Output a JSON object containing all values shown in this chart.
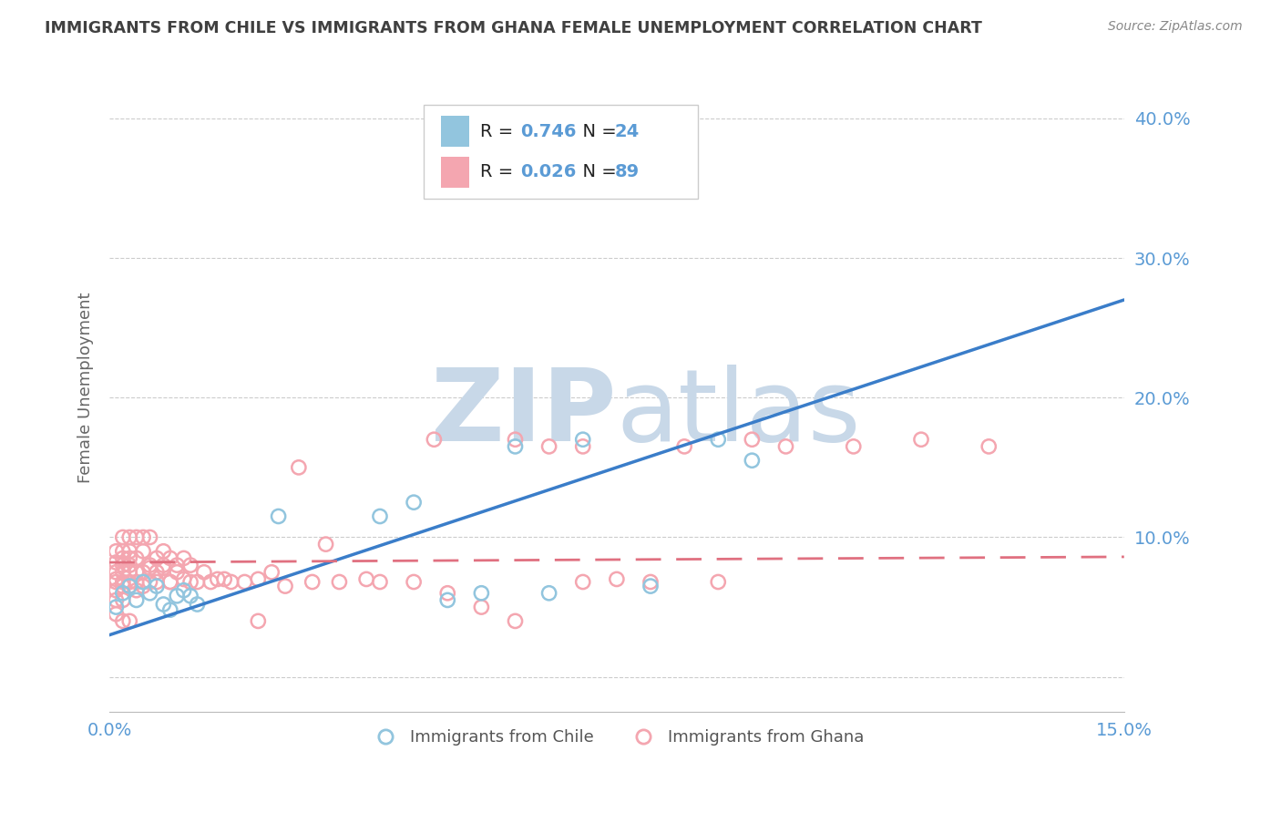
{
  "title": "IMMIGRANTS FROM CHILE VS IMMIGRANTS FROM GHANA FEMALE UNEMPLOYMENT CORRELATION CHART",
  "source": "Source: ZipAtlas.com",
  "ylabel": "Female Unemployment",
  "xlim": [
    0.0,
    0.15
  ],
  "ylim": [
    -0.025,
    0.44
  ],
  "yticks": [
    0.0,
    0.1,
    0.2,
    0.3,
    0.4
  ],
  "ytick_labels": [
    "",
    "10.0%",
    "20.0%",
    "30.0%",
    "40.0%"
  ],
  "xticks": [
    0.0,
    0.15
  ],
  "xtick_labels": [
    "0.0%",
    "15.0%"
  ],
  "chile_color": "#92c5de",
  "ghana_color": "#f4a6b0",
  "chile_line_color": "#3a7dc9",
  "ghana_line_color": "#e07080",
  "chile_R": 0.746,
  "chile_N": 24,
  "ghana_R": 0.026,
  "ghana_N": 89,
  "legend_label_chile": "Immigrants from Chile",
  "legend_label_ghana": "Immigrants from Ghana",
  "background_color": "#ffffff",
  "grid_color": "#cccccc",
  "title_color": "#404040",
  "axis_label_color": "#5b9bd5",
  "watermark_color": "#c8d8e8",
  "chile_trend_x0": 0.0,
  "chile_trend_y0": 0.03,
  "chile_trend_x1": 0.15,
  "chile_trend_y1": 0.27,
  "ghana_trend_x0": 0.0,
  "ghana_trend_y0": 0.082,
  "ghana_trend_x1": 0.15,
  "ghana_trend_y1": 0.086,
  "chile_scatter_x": [
    0.001,
    0.002,
    0.003,
    0.004,
    0.005,
    0.006,
    0.007,
    0.008,
    0.009,
    0.01,
    0.011,
    0.012,
    0.013,
    0.04,
    0.045,
    0.06,
    0.065,
    0.07,
    0.08,
    0.09,
    0.095,
    0.055,
    0.05,
    0.025
  ],
  "chile_scatter_y": [
    0.05,
    0.06,
    0.065,
    0.055,
    0.068,
    0.06,
    0.065,
    0.052,
    0.048,
    0.058,
    0.062,
    0.058,
    0.052,
    0.115,
    0.125,
    0.165,
    0.06,
    0.17,
    0.065,
    0.17,
    0.155,
    0.06,
    0.055,
    0.115
  ],
  "ghana_scatter_x": [
    0.001,
    0.001,
    0.001,
    0.001,
    0.001,
    0.001,
    0.001,
    0.001,
    0.002,
    0.002,
    0.002,
    0.002,
    0.002,
    0.002,
    0.002,
    0.002,
    0.002,
    0.003,
    0.003,
    0.003,
    0.003,
    0.003,
    0.003,
    0.003,
    0.003,
    0.004,
    0.004,
    0.004,
    0.004,
    0.004,
    0.005,
    0.005,
    0.005,
    0.005,
    0.005,
    0.006,
    0.006,
    0.006,
    0.006,
    0.007,
    0.007,
    0.007,
    0.008,
    0.008,
    0.008,
    0.009,
    0.009,
    0.009,
    0.01,
    0.01,
    0.011,
    0.011,
    0.012,
    0.012,
    0.013,
    0.014,
    0.015,
    0.016,
    0.017,
    0.018,
    0.02,
    0.022,
    0.024,
    0.026,
    0.028,
    0.03,
    0.032,
    0.034,
    0.038,
    0.04,
    0.045,
    0.048,
    0.05,
    0.055,
    0.06,
    0.065,
    0.07,
    0.075,
    0.08,
    0.085,
    0.09,
    0.095,
    0.1,
    0.11,
    0.12,
    0.13,
    0.06,
    0.07,
    0.022
  ],
  "ghana_scatter_y": [
    0.062,
    0.075,
    0.082,
    0.068,
    0.055,
    0.09,
    0.07,
    0.045,
    0.068,
    0.08,
    0.09,
    0.075,
    0.065,
    0.055,
    0.085,
    0.1,
    0.04,
    0.068,
    0.08,
    0.09,
    0.085,
    0.075,
    0.1,
    0.065,
    0.04,
    0.068,
    0.075,
    0.062,
    0.085,
    0.1,
    0.068,
    0.09,
    0.1,
    0.075,
    0.065,
    0.068,
    0.08,
    0.1,
    0.078,
    0.075,
    0.085,
    0.068,
    0.08,
    0.078,
    0.09,
    0.068,
    0.085,
    0.068,
    0.075,
    0.08,
    0.07,
    0.085,
    0.068,
    0.08,
    0.068,
    0.075,
    0.068,
    0.07,
    0.07,
    0.068,
    0.068,
    0.07,
    0.075,
    0.065,
    0.15,
    0.068,
    0.095,
    0.068,
    0.07,
    0.068,
    0.068,
    0.17,
    0.06,
    0.05,
    0.04,
    0.165,
    0.068,
    0.07,
    0.068,
    0.165,
    0.068,
    0.17,
    0.165,
    0.165,
    0.17,
    0.165,
    0.17,
    0.165,
    0.04
  ]
}
